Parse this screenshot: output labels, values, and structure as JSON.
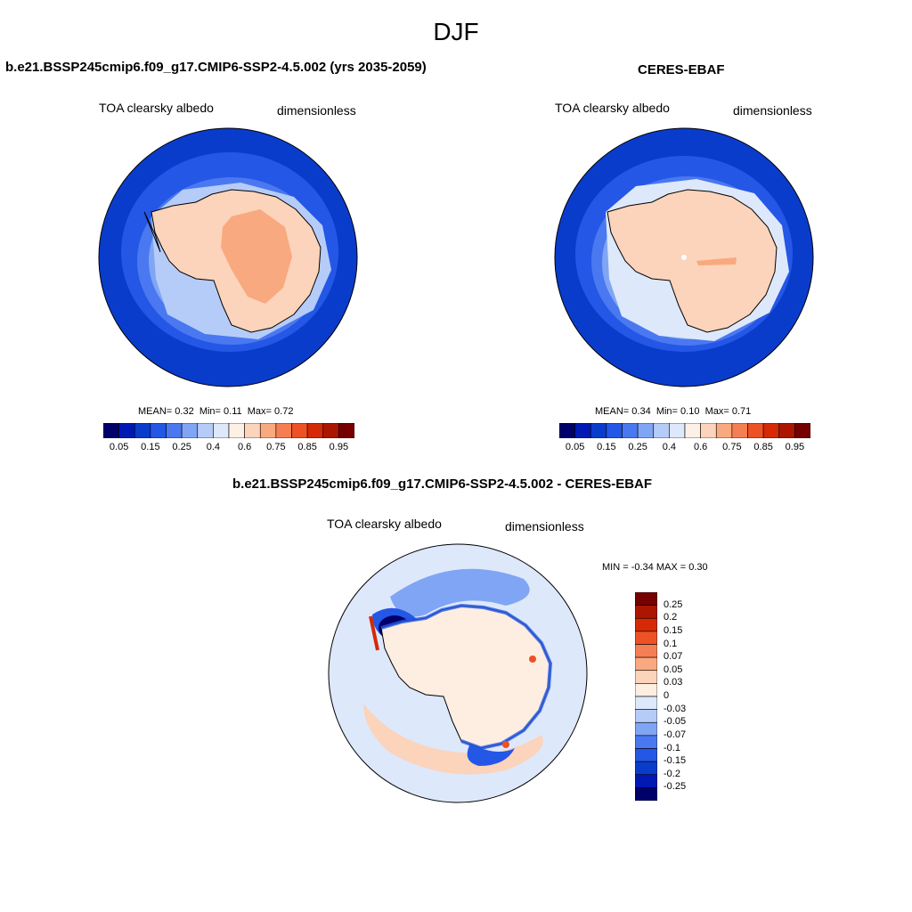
{
  "figure": {
    "season": "DJF"
  },
  "panels": {
    "model": {
      "title": "b.e21.BSSP245cmip6.f09_g17.CMIP6-SSP2-4.5.002 (yrs 2035-2059)",
      "variable": "TOA clearsky albedo",
      "units": "dimensionless",
      "stats": {
        "mean_label": "MEAN=",
        "mean": "0.32",
        "min_label": "Min=",
        "min": "0.11",
        "max_label": "Max=",
        "max": "0.72"
      }
    },
    "obs": {
      "title": "CERES-EBAF",
      "variable": "TOA clearsky albedo",
      "units": "dimensionless",
      "stats": {
        "mean_label": "MEAN=",
        "mean": "0.34",
        "min_label": "Min=",
        "min": "0.10",
        "max_label": "Max=",
        "max": "0.71"
      }
    },
    "diff": {
      "title": "b.e21.BSSP245cmip6.f09_g17.CMIP6-SSP2-4.5.002 - CERES-EBAF",
      "variable": "TOA clearsky albedo",
      "units": "dimensionless",
      "stats": {
        "min_label": "MIN =",
        "min": "-0.34",
        "max_label": "MAX =",
        "max": "0.30"
      }
    }
  },
  "colorbars": {
    "abs": {
      "colors": [
        "#00006a",
        "#0019b4",
        "#0a3ccc",
        "#2457e6",
        "#4a78f0",
        "#80a5f5",
        "#b5ccf8",
        "#dde8fb",
        "#fff0e5",
        "#fcd3bb",
        "#f9a97f",
        "#f57f52",
        "#ee5125",
        "#d52a05",
        "#ac1600",
        "#760000"
      ],
      "labels": [
        "0.05",
        "0.15",
        "0.25",
        "0.4",
        "0.6",
        "0.75",
        "0.85",
        "0.95"
      ]
    },
    "diff": {
      "colors": [
        "#00006a",
        "#0019b4",
        "#0a3ccc",
        "#2457e6",
        "#4a78f0",
        "#80a5f5",
        "#b5ccf8",
        "#dde8fb",
        "#fdeee1",
        "#fcd3bb",
        "#f9a97f",
        "#f57f52",
        "#ee5125",
        "#d52a05",
        "#ac1600",
        "#760000"
      ],
      "labels": [
        "0.25",
        "0.2",
        "0.15",
        "0.1",
        "0.07",
        "0.05",
        "0.03",
        "0",
        "-0.03",
        "-0.05",
        "-0.07",
        "-0.1",
        "-0.15",
        "-0.2",
        "-0.25"
      ]
    }
  },
  "colors": {
    "ocean": "#0a3ccc",
    "diff_ocean": "#dde8fb",
    "ice_model": "#fcd3bb",
    "ice_model_interior": "#f9a97f",
    "ice_obs": "#fcd3bb",
    "diff_land": "#fdeee1"
  }
}
